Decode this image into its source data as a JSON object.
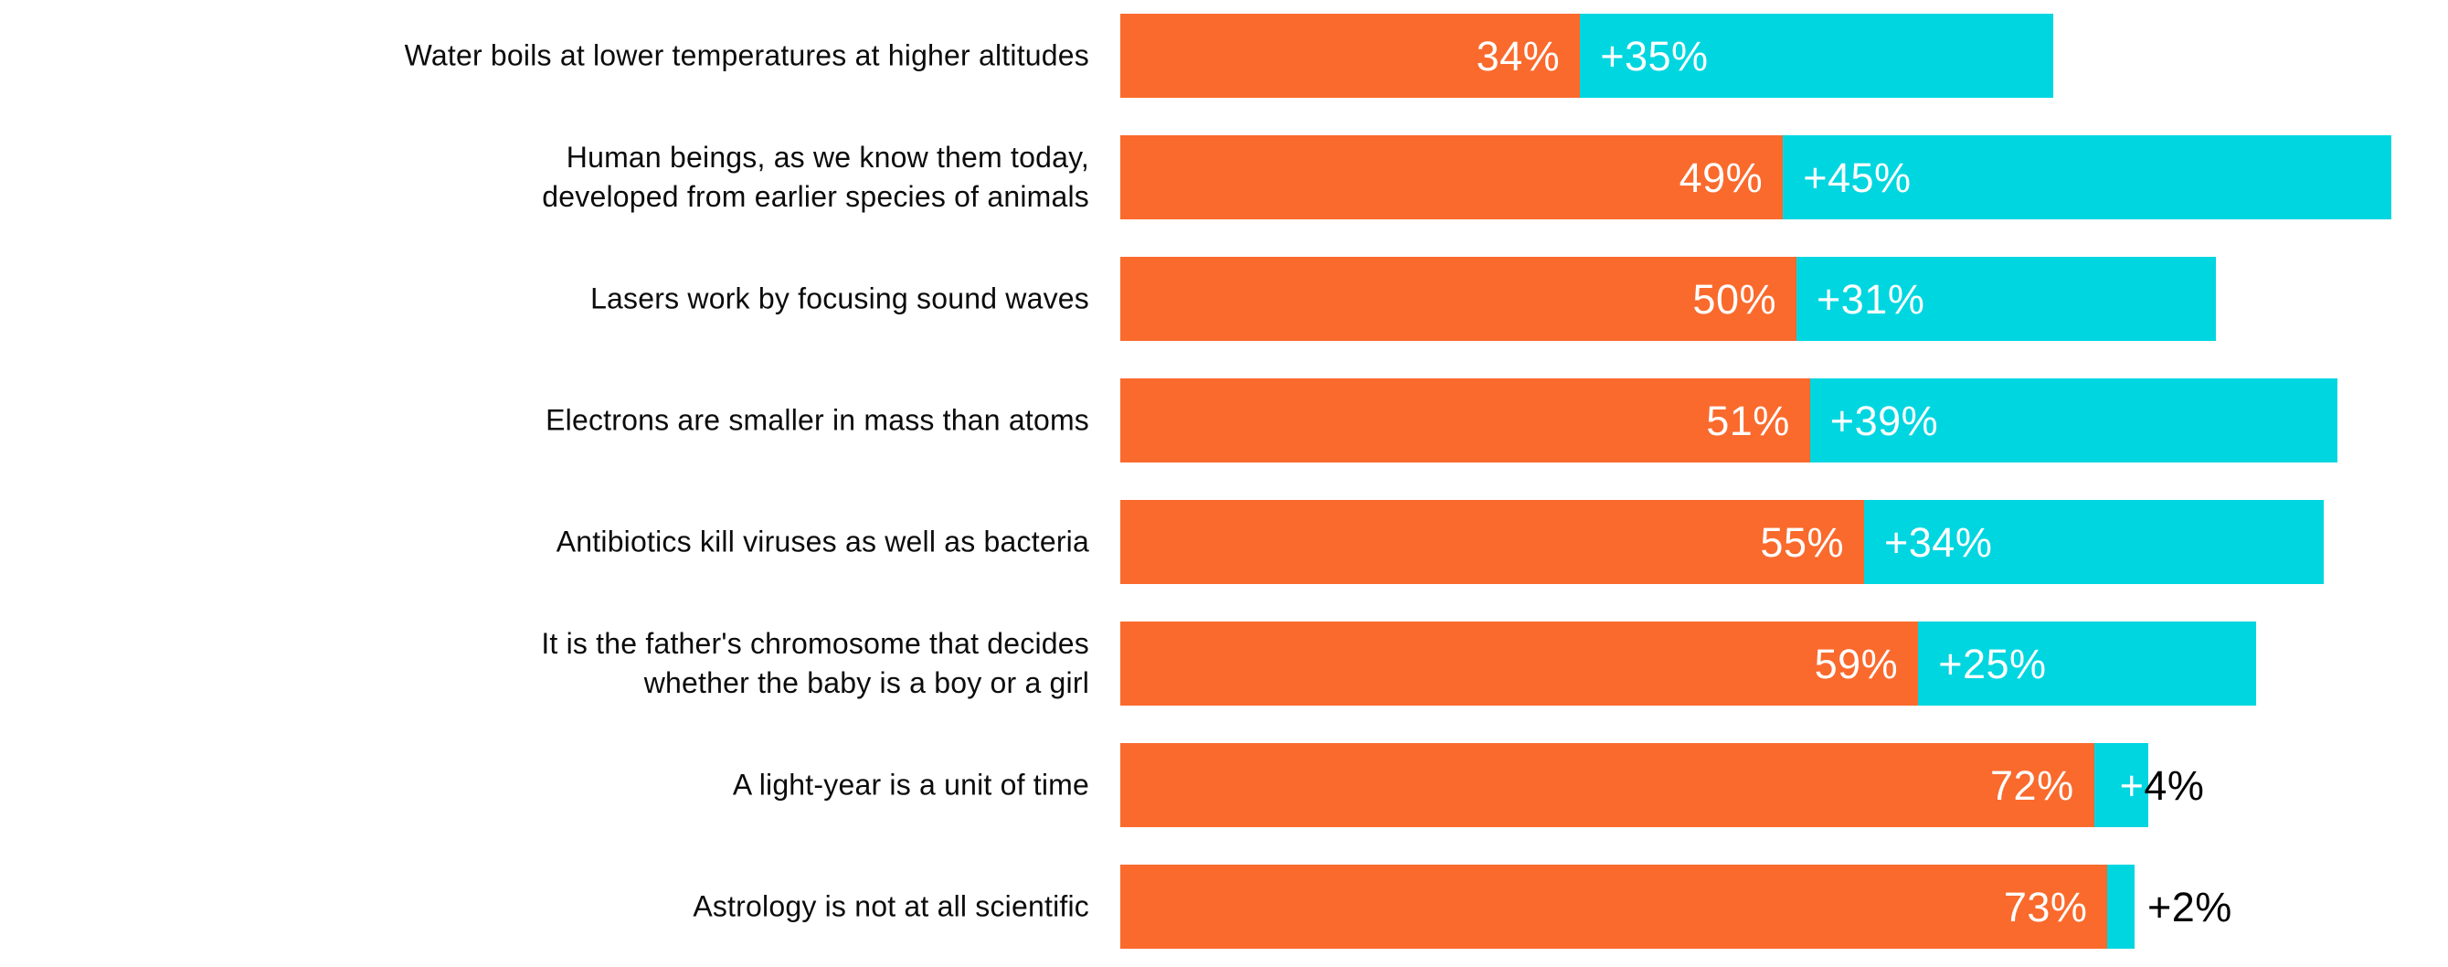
{
  "chart_data": {
    "type": "bar",
    "orientation": "horizontal",
    "stacked": true,
    "title": "",
    "xlabel": "",
    "ylabel": "",
    "grid": false,
    "legend_position": "none",
    "xlim": [
      0,
      98
    ],
    "background_color": "#FFFFFF",
    "category_text_color": "#0B0B0B",
    "value_label_color_inside": "#FFFFFF",
    "value_label_color_outside": "#000000",
    "categories": [
      "Water boils at lower temperatures at higher altitudes",
      "Human beings, as we know them today,\ndeveloped from earlier species of animals",
      "Lasers work by focusing sound waves",
      "Electrons are smaller in mass than atoms",
      "Antibiotics kill viruses as well as bacteria",
      "It is the father's chromosome that decides\nwhether the baby is a boy or a girl",
      "A light-year is a unit of time",
      "Astrology is not at all scientific"
    ],
    "series": [
      {
        "color": "#FA6A2D",
        "values": [
          34,
          49,
          50,
          51,
          55,
          59,
          72,
          73
        ],
        "labels": [
          "34%",
          "49%",
          "50%",
          "51%",
          "55%",
          "59%",
          "72%",
          "73%"
        ]
      },
      {
        "color": "#00D6E0",
        "values": [
          35,
          45,
          31,
          39,
          34,
          25,
          4,
          2
        ],
        "labels": [
          "+35%",
          "+45%",
          "+31%",
          "+39%",
          "+34%",
          "+25%",
          "+4%",
          "+2%"
        ]
      }
    ],
    "value_label_modes": [
      "inside",
      "inside",
      "inside",
      "inside",
      "inside",
      "inside",
      "split",
      "outside"
    ]
  }
}
